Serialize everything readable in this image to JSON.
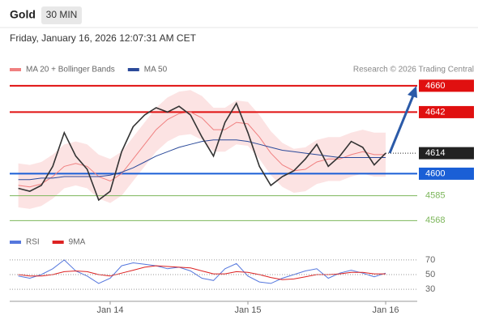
{
  "chart_data": [
    {
      "type": "line",
      "title": "Gold",
      "timeframe": "30 MIN",
      "subtitle": "Friday, January 16, 2026 12:07:31 AM CET",
      "source": "Research © 2026 Trading Central",
      "x": [
        -16,
        -14,
        -12,
        -10,
        -8,
        -6,
        -4,
        -2,
        0,
        2,
        4,
        6,
        8,
        10,
        12,
        14,
        16,
        18,
        20,
        22,
        24,
        26,
        28,
        30,
        32,
        34,
        36,
        38,
        40,
        42,
        44,
        46,
        48
      ],
      "xlim": [
        -17.5,
        53.5
      ],
      "xticks": [
        {
          "value": 0,
          "label": "Jan 14"
        },
        {
          "value": 24,
          "label": "Jan 15"
        },
        {
          "value": 48,
          "label": "Jan 16"
        }
      ],
      "ylim": [
        4561,
        4666
      ],
      "price": {
        "color": "#333333",
        "values": [
          4590,
          4588,
          4592,
          4605,
          4628,
          4612,
          4603,
          4582,
          4588,
          4615,
          4632,
          4640,
          4645,
          4642,
          4646,
          4640,
          4625,
          4612,
          4635,
          4648,
          4628,
          4605,
          4592,
          4598,
          4602,
          4610,
          4620,
          4605,
          4612,
          4622,
          4618,
          4606,
          4614
        ]
      },
      "series": [
        {
          "name": "MA 20 + Bollinger Bands",
          "color": "#f08080",
          "values": [
            4592,
            4591,
            4593,
            4598,
            4605,
            4607,
            4605,
            4598,
            4595,
            4600,
            4610,
            4620,
            4630,
            4637,
            4641,
            4642,
            4638,
            4630,
            4630,
            4635,
            4634,
            4625,
            4614,
            4606,
            4602,
            4603,
            4608,
            4610,
            4610,
            4613,
            4615,
            4613,
            4613
          ],
          "band_upper": [
            4607,
            4606,
            4608,
            4613,
            4620,
            4622,
            4620,
            4613,
            4610,
            4615,
            4625,
            4635,
            4645,
            4652,
            4656,
            4657,
            4653,
            4645,
            4645,
            4650,
            4649,
            4640,
            4629,
            4621,
            4617,
            4618,
            4623,
            4625,
            4625,
            4628,
            4630,
            4628,
            4628
          ],
          "band_lower": [
            4577,
            4576,
            4578,
            4583,
            4590,
            4592,
            4590,
            4583,
            4580,
            4585,
            4595,
            4605,
            4615,
            4622,
            4626,
            4627,
            4623,
            4615,
            4615,
            4620,
            4619,
            4610,
            4599,
            4591,
            4587,
            4588,
            4593,
            4595,
            4595,
            4598,
            4600,
            4598,
            4598
          ]
        },
        {
          "name": "MA 50",
          "color": "#2b4a9a",
          "values": [
            4596,
            4596,
            4597,
            4597,
            4598,
            4598,
            4598,
            4598,
            4599,
            4601,
            4604,
            4608,
            4612,
            4615,
            4618,
            4620,
            4622,
            4623,
            4623,
            4623,
            4622,
            4620,
            4618,
            4616,
            4615,
            4614,
            4613,
            4612,
            4611,
            4611,
            4611,
            4611,
            4611
          ]
        }
      ],
      "levels": [
        {
          "value": 4660,
          "color": "#e01010",
          "style": "solid",
          "box": true
        },
        {
          "value": 4642,
          "color": "#e01010",
          "style": "solid",
          "box": true
        },
        {
          "value": 4614,
          "color": "#222222",
          "style": "dotted",
          "box": true
        },
        {
          "value": 4600,
          "color": "#1a5fd6",
          "style": "solid",
          "box": true
        },
        {
          "value": 4585,
          "color": "#7cb65a",
          "style": "thin",
          "box": false
        },
        {
          "value": 4568,
          "color": "#7cb65a",
          "style": "thin",
          "box": false
        }
      ]
    },
    {
      "type": "line",
      "ylim": [
        18,
        82
      ],
      "yticks": [
        70,
        50,
        30
      ],
      "series": [
        {
          "name": "RSI",
          "color": "#5577dd",
          "values": [
            48,
            45,
            50,
            58,
            70,
            55,
            48,
            38,
            45,
            62,
            66,
            64,
            62,
            58,
            60,
            55,
            45,
            42,
            58,
            65,
            48,
            40,
            38,
            45,
            50,
            55,
            58,
            45,
            52,
            56,
            52,
            47,
            52
          ]
        },
        {
          "name": "9MA",
          "color": "#dd2222",
          "values": [
            50,
            48,
            48,
            50,
            54,
            55,
            54,
            50,
            48,
            52,
            56,
            60,
            62,
            61,
            60,
            59,
            55,
            51,
            51,
            54,
            53,
            50,
            46,
            43,
            44,
            47,
            50,
            50,
            51,
            53,
            53,
            51,
            51
          ]
        }
      ]
    }
  ]
}
